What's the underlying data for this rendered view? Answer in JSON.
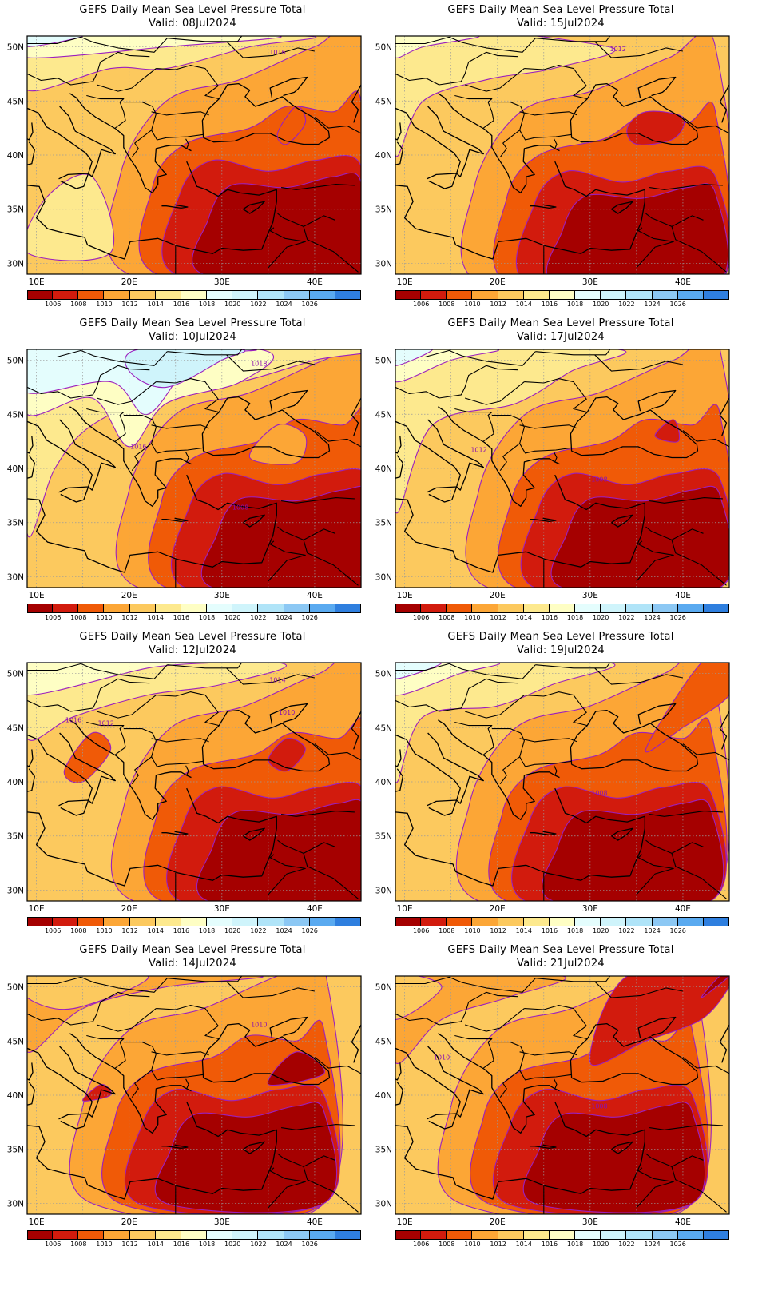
{
  "colors": {
    "levels": [
      "#a50000",
      "#d21b0d",
      "#f05a07",
      "#fca636",
      "#fcc95e",
      "#fde98e",
      "#fefec4",
      "#e4fdfd",
      "#cff4fb",
      "#b0e4f8",
      "#8cc8f4",
      "#5aaaf0",
      "#2f7fdf"
    ],
    "contour": "#9b1fbf",
    "label": "#8a10b0"
  },
  "colorbar_labels": [
    "1006",
    "1008",
    "1010",
    "1012",
    "1014",
    "1016",
    "1018",
    "1020",
    "1022",
    "1024",
    "1026"
  ],
  "lat_labels": [
    "50N",
    "45N",
    "40N",
    "35N",
    "30N"
  ],
  "lon_labels": [
    "10E",
    "20E",
    "30E",
    "40E"
  ],
  "panels": [
    {
      "title": "GEFS Daily Mean Sea Level Pressure Total",
      "valid": "Valid: 08Jul2024",
      "labels": [
        "1016"
      ]
    },
    {
      "title": "GEFS Daily Mean Sea Level Pressure Total",
      "valid": "Valid: 15Jul2024",
      "labels": [
        "1012"
      ]
    },
    {
      "title": "GEFS Daily Mean Sea Level Pressure Total",
      "valid": "Valid: 10Jul2024",
      "labels": [
        "1018",
        "1016",
        "1008"
      ]
    },
    {
      "title": "GEFS Daily Mean Sea Level Pressure Total",
      "valid": "Valid: 17Jul2024",
      "labels": [
        "1012",
        "1008"
      ]
    },
    {
      "title": "GEFS Daily Mean Sea Level Pressure Total",
      "valid": "Valid: 12Jul2024",
      "labels": [
        "1014",
        "1010",
        "1016",
        "1012"
      ]
    },
    {
      "title": "GEFS Daily Mean Sea Level Pressure Total",
      "valid": "Valid: 19Jul2024",
      "labels": [
        "1008"
      ]
    },
    {
      "title": "GEFS Daily Mean Sea Level Pressure Total",
      "valid": "Valid: 14Jul2024",
      "labels": [
        "1010"
      ]
    },
    {
      "title": "GEFS Daily Mean Sea Level Pressure Total",
      "valid": "Valid: 21Jul2024",
      "labels": [
        "1010",
        "1008"
      ]
    }
  ]
}
